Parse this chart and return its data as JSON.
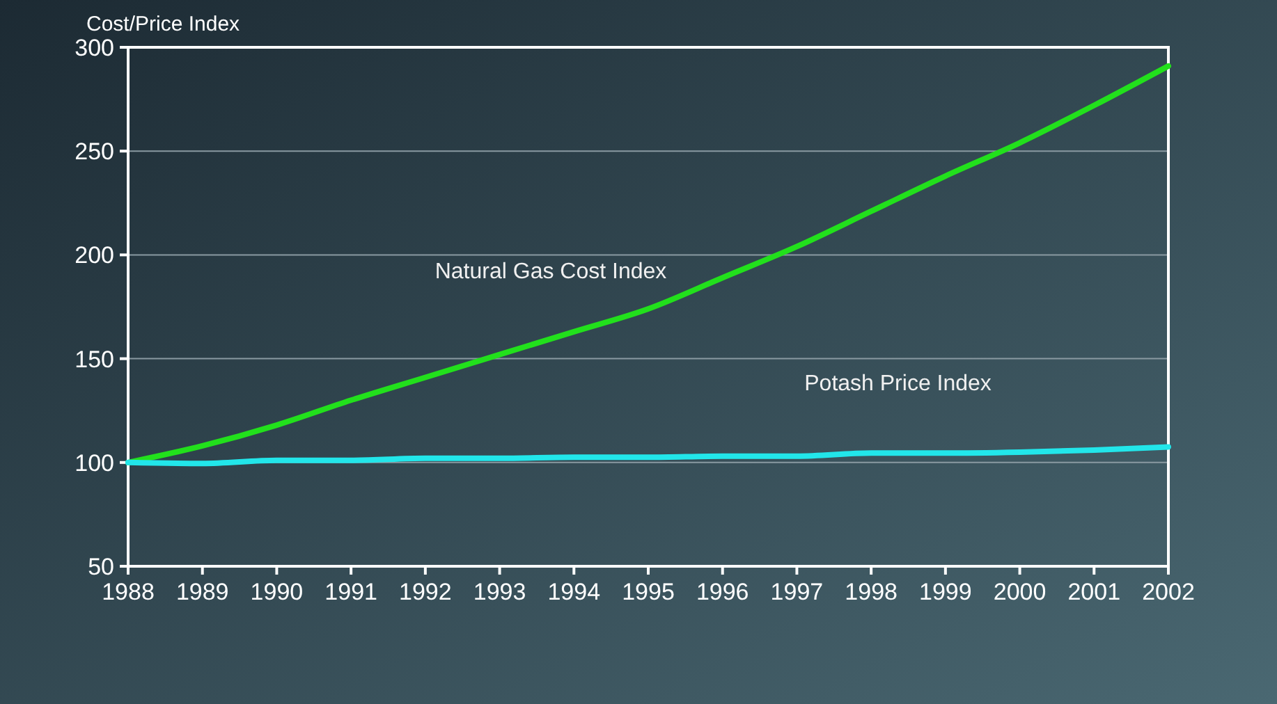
{
  "chart_data": {
    "type": "line",
    "ylabel": "Cost/Price Index",
    "x": [
      1988,
      1989,
      1990,
      1991,
      1992,
      1993,
      1994,
      1995,
      1996,
      1997,
      1998,
      1999,
      2000,
      2001,
      2002
    ],
    "series": [
      {
        "name": "Natural Gas Cost Index",
        "color": "#22e01c",
        "values": [
          100,
          108,
          118,
          130,
          141,
          152,
          163,
          174,
          189,
          204,
          221,
          238,
          254,
          272,
          291
        ]
      },
      {
        "name": "Potash Price Index",
        "color": "#22e6ea",
        "values": [
          100,
          99.5,
          101,
          101,
          102,
          102,
          102.5,
          102.5,
          103,
          103,
          104.5,
          104.5,
          105,
          106,
          107.5
        ]
      }
    ],
    "xlim": [
      1988,
      2002
    ],
    "xticks": [
      1988,
      1989,
      1990,
      1991,
      1992,
      1993,
      1994,
      1995,
      1996,
      1997,
      1998,
      1999,
      2000,
      2001,
      2002
    ],
    "ylim": [
      50,
      300
    ],
    "yticks": [
      50,
      100,
      150,
      200,
      250,
      300
    ],
    "grid": "y",
    "marker": "none",
    "line_style": "solid"
  }
}
